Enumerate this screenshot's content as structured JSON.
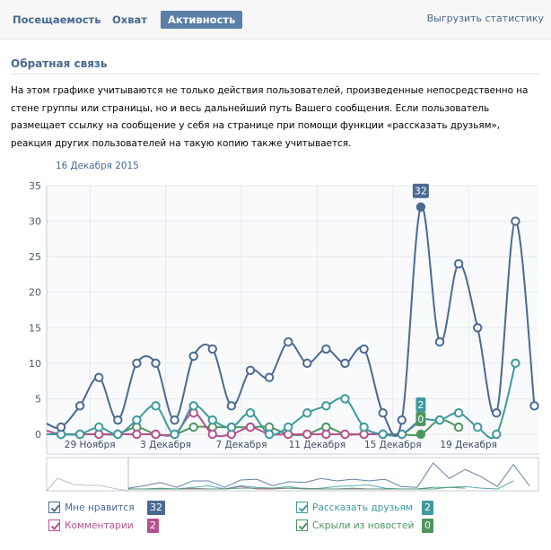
{
  "tabs": [
    {
      "label": "Посещаемость",
      "active": false
    },
    {
      "label": "Охват",
      "active": false
    },
    {
      "label": "Активность",
      "active": true
    }
  ],
  "export_label": "Выгрузить статистику",
  "section": {
    "title": "Обратная связь",
    "description": "На этом графике учитываются не только действия пользователей, произведенные непосредственно на стене группы или страницы, но и весь дальнейший путь Вашего сообщения. Если пользователь размещает ссылку на сообщение у себя на странице при помощи функции «рассказать друзьям», реакция других пользователей на такую копию также учитывается."
  },
  "hover_date": "16 Декабря 2015",
  "legend": [
    {
      "label": "Мне нравится",
      "value": "32",
      "color": "#4a6a94",
      "checked": true
    },
    {
      "label": "Комментарии",
      "value": "2",
      "color": "#b7508f",
      "checked": true
    },
    {
      "label": "Рассказать друзьям",
      "value": "2",
      "color": "#3d9a9f",
      "checked": true
    },
    {
      "label": "Скрыли из новостей",
      "value": "0",
      "color": "#4e9560",
      "checked": true
    }
  ],
  "chart_data": {
    "type": "line",
    "title": "",
    "xlabel": "",
    "ylabel": "",
    "ylim": [
      0,
      35
    ],
    "yticks": [
      0,
      5,
      10,
      15,
      20,
      25,
      30,
      35
    ],
    "xtick_labels": [
      "29 Ноября",
      "3 Декабря",
      "7 Декабря",
      "11 Декабря",
      "15 Декабря",
      "19 Декабря"
    ],
    "x": [
      "27 Ноября",
      "28 Ноября",
      "29 Ноября",
      "30 Ноября",
      "1 Декабря",
      "2 Декабря",
      "3 Декабря",
      "4 Декабря",
      "5 Декабря",
      "6 Декабря",
      "7 Декабря",
      "8 Декабря",
      "9 Декабря",
      "10 Декабря",
      "11 Декабря",
      "12 Декабря",
      "13 Декабря",
      "14 Декабря",
      "15 Декабря",
      "16 Декабря",
      "17 Декабря",
      "18 Декабря",
      "19 Декабря",
      "20 Декабря",
      "21 Декабря",
      "22 Декабря"
    ],
    "grid": true,
    "highlight_index": 19,
    "series": [
      {
        "name": "Мне нравится",
        "color": "#4a6a94",
        "values": [
          1,
          4,
          8,
          2,
          10,
          10,
          2,
          11,
          12,
          4,
          9,
          8,
          13,
          10,
          12,
          10,
          12,
          3,
          2,
          32,
          13,
          24,
          15,
          3,
          30,
          4
        ]
      },
      {
        "name": "Комментарии",
        "color": "#b7508f",
        "values": [
          0,
          0,
          0,
          0,
          0,
          0,
          0,
          3,
          0,
          0,
          1,
          0,
          0,
          0,
          0,
          0,
          0,
          0,
          0,
          2,
          null,
          null,
          null,
          null,
          null,
          null
        ]
      },
      {
        "name": "Рассказать друзьям",
        "color": "#3d9a9f",
        "values": [
          0,
          0,
          1,
          0,
          2,
          4,
          0,
          4,
          2,
          1,
          3,
          0,
          1,
          3,
          4,
          5,
          1,
          0,
          0,
          2,
          2,
          3,
          1,
          0,
          10,
          null
        ]
      },
      {
        "name": "Скрыли из новостей",
        "color": "#4e9560",
        "values": [
          0,
          0,
          0,
          0,
          1,
          0,
          0,
          1,
          1,
          1,
          1,
          1,
          0,
          0,
          1,
          0,
          0,
          0,
          0,
          0,
          2,
          1,
          null,
          null,
          null,
          null
        ]
      }
    ]
  }
}
